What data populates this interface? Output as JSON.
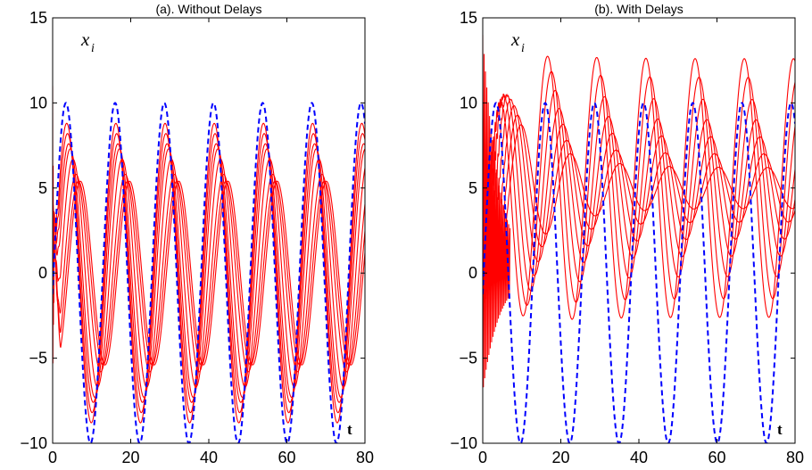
{
  "chart_data": [
    {
      "type": "line",
      "title": "(a). Without Delays",
      "xlabel": "t",
      "ylabel": "x",
      "ylabel_sub": "i",
      "xlim": [
        0,
        80
      ],
      "ylim": [
        -10,
        15
      ],
      "xticks": [
        "0",
        "20",
        "40",
        "60",
        "80"
      ],
      "yticks": [
        "−10",
        "−5",
        "0",
        "5",
        "10",
        "15"
      ],
      "grid": false,
      "series": [
        {
          "role": "reference",
          "color": "#0000ff",
          "style": "dashed",
          "amplitude": 10,
          "period": 12.6,
          "peak_t": 3.4
        },
        {
          "role": "agent",
          "color": "#ff0000",
          "style": "solid",
          "amplitude": 7.3,
          "period": 12.6,
          "peak_t": 4.5
        },
        {
          "role": "agent",
          "color": "#ff0000",
          "style": "solid",
          "amplitude": 7.6,
          "period": 12.6,
          "peak_t": 4.1
        },
        {
          "role": "agent",
          "color": "#ff0000",
          "style": "solid",
          "amplitude": 8.2,
          "period": 12.6,
          "peak_t": 3.8
        },
        {
          "role": "agent",
          "color": "#ff0000",
          "style": "solid",
          "amplitude": 8.8,
          "period": 12.6,
          "peak_t": 3.6
        },
        {
          "role": "agent",
          "color": "#ff0000",
          "style": "solid",
          "amplitude": 6.7,
          "period": 12.6,
          "peak_t": 5.2
        },
        {
          "role": "agent",
          "color": "#ff0000",
          "style": "solid",
          "amplitude": 5.8,
          "period": 12.6,
          "peak_t": 6.0
        },
        {
          "role": "agent",
          "color": "#ff0000",
          "style": "solid",
          "amplitude": 5.4,
          "period": 12.6,
          "peak_t": 6.6
        },
        {
          "role": "agent",
          "color": "#ff0000",
          "style": "solid",
          "amplitude": 5.4,
          "period": 12.6,
          "peak_t": 7.1
        }
      ],
      "initial_transient": {
        "t_range": [
          0,
          0.4
        ],
        "y_range": [
          -7,
          11
        ]
      }
    },
    {
      "type": "line",
      "title": "(b). With Delays",
      "xlabel": "t",
      "ylabel": "x",
      "ylabel_sub": "i",
      "xlim": [
        0,
        80
      ],
      "ylim": [
        -10,
        15
      ],
      "xticks": [
        "0",
        "20",
        "40",
        "60",
        "80"
      ],
      "yticks": [
        "−10",
        "−5",
        "0",
        "5",
        "10",
        "15"
      ],
      "grid": false,
      "series": [
        {
          "role": "reference",
          "color": "#0000ff",
          "style": "dashed",
          "amplitude": 10,
          "period": 12.6,
          "peak_t": 3.4
        },
        {
          "role": "agent",
          "color": "#ff0000",
          "style": "solid",
          "amplitude_end": 7.6,
          "period": 12.6,
          "peak_t": 4.0
        },
        {
          "role": "agent",
          "color": "#ff0000",
          "style": "solid",
          "amplitude_end": 6.5,
          "period": 12.6,
          "peak_t": 5.0
        },
        {
          "role": "agent",
          "color": "#ff0000",
          "style": "solid",
          "amplitude_end": 5.2,
          "period": 12.6,
          "peak_t": 6.0
        },
        {
          "role": "agent",
          "color": "#ff0000",
          "style": "solid",
          "amplitude_end": 4.0,
          "period": 12.6,
          "peak_t": 7.0
        },
        {
          "role": "agent",
          "color": "#ff0000",
          "style": "solid",
          "amplitude_end": 3.0,
          "period": 12.6,
          "peak_t": 8.0
        },
        {
          "role": "agent",
          "color": "#ff0000",
          "style": "solid",
          "amplitude_end": 2.0,
          "period": 12.6,
          "peak_t": 9.0
        },
        {
          "role": "agent",
          "color": "#ff0000",
          "style": "solid",
          "amplitude_end": 1.2,
          "period": 12.6,
          "peak_t": 10.0
        }
      ],
      "initial_transient": {
        "t_range": [
          0,
          7
        ],
        "y_range": [
          -7,
          14
        ]
      }
    }
  ]
}
